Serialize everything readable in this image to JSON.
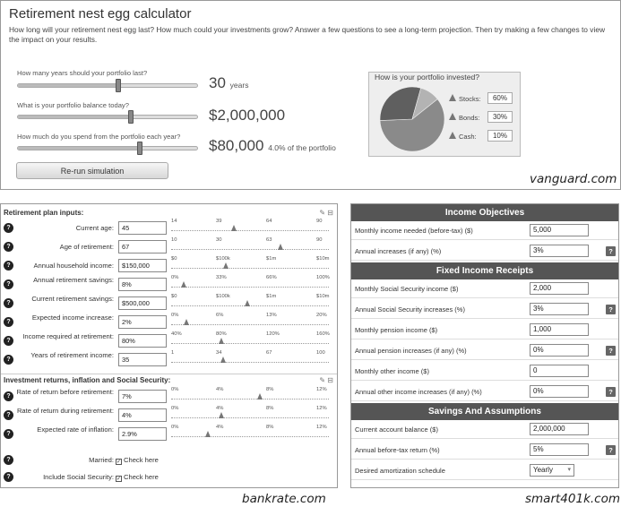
{
  "vanguard": {
    "title": "Retirement nest egg calculator",
    "description": "How long will your retirement nest egg last? How much could your investments grow? Answer a few questions to see a long-term projection. Then try making a few changes to view the impact on your results.",
    "years": {
      "question": "How many years should your portfolio last?",
      "value": "30",
      "unit": "years",
      "slider_fraction": 0.56
    },
    "balance": {
      "question": "What is your portfolio balance today?",
      "value": "$2,000,000",
      "slider_fraction": 0.63
    },
    "spend": {
      "question": "How much do you spend from the portfolio each year?",
      "value": "$80,000",
      "note": "4.0% of the portfolio",
      "slider_fraction": 0.68
    },
    "rerun_label": "Re-run simulation",
    "allocation": {
      "heading": "How is your portfolio invested?",
      "items": [
        {
          "label": "Stocks:",
          "value": "60%",
          "color": "#8a8a8a"
        },
        {
          "label": "Bonds:",
          "value": "30%",
          "color": "#5f5f5f"
        },
        {
          "label": "Cash:",
          "value": "10%",
          "color": "#b3b3b3"
        }
      ],
      "shares": [
        60,
        30,
        10
      ]
    },
    "watermark": "vanguard.com"
  },
  "bankrate": {
    "section1_title": "Retirement plan inputs:",
    "section2_title": "Investment returns, inflation and Social Security:",
    "section_tools": "✎ ⊟",
    "help_glyph": "?",
    "rows": [
      {
        "label": "Current age:",
        "value": "45",
        "ticks": [
          "14",
          "39",
          "64",
          "90"
        ],
        "marker": 0.41
      },
      {
        "label": "Age of retirement:",
        "value": "67",
        "ticks": [
          "10",
          "30",
          "63",
          "90"
        ],
        "marker": 0.72
      },
      {
        "label": "Annual household income:",
        "value": "$150,000",
        "ticks": [
          "$0",
          "$100k",
          "$1m",
          "$10m"
        ],
        "marker": 0.36
      },
      {
        "label": "Annual retirement savings:",
        "value": "8%",
        "ticks": [
          "0%",
          "33%",
          "66%",
          "100%"
        ],
        "marker": 0.08
      },
      {
        "label": "Current retirement savings:",
        "value": "$500,000",
        "ticks": [
          "$0",
          "$100k",
          "$1m",
          "$10m"
        ],
        "marker": 0.5
      },
      {
        "label": "Expected income increase:",
        "value": "2%",
        "ticks": [
          "0%",
          "6%",
          "13%",
          "20%"
        ],
        "marker": 0.1
      },
      {
        "label": "Income required at retirement:",
        "value": "80%",
        "ticks": [
          "40%",
          "80%",
          "120%",
          "160%"
        ],
        "marker": 0.33
      },
      {
        "label": "Years of retirement income:",
        "value": "35",
        "ticks": [
          "1",
          "34",
          "67",
          "100"
        ],
        "marker": 0.34
      }
    ],
    "rows2": [
      {
        "label": "Rate of return before retirement:",
        "value": "7%",
        "ticks": [
          "0%",
          "4%",
          "8%",
          "12%"
        ],
        "marker": 0.58
      },
      {
        "label": "Rate of return during retirement:",
        "value": "4%",
        "ticks": [
          "0%",
          "4%",
          "8%",
          "12%"
        ],
        "marker": 0.33
      },
      {
        "label": "Expected rate of inflation:",
        "value": "2.9%",
        "ticks": [
          "0%",
          "4%",
          "8%",
          "12%"
        ],
        "marker": 0.24
      }
    ],
    "married": {
      "label": "Married:",
      "check": "Check here",
      "checked": true
    },
    "social_security": {
      "label": "Include Social Security:",
      "check": "Check here",
      "checked": true
    },
    "watermark": "bankrate.com"
  },
  "smart401k": {
    "help_glyph": "?",
    "sections": [
      {
        "title": "Income Objectives",
        "rows": [
          {
            "label": "Monthly income needed (before-tax) ($)",
            "value": "5,000",
            "help": false
          },
          {
            "label": "Annual increases (if any) (%)",
            "value": "3%",
            "help": true
          }
        ]
      },
      {
        "title": "Fixed Income Receipts",
        "rows": [
          {
            "label": "Monthly Social Security income ($)",
            "value": "2,000",
            "help": false
          },
          {
            "label": "Annual Social Security increases (%)",
            "value": "3%",
            "help": true
          },
          {
            "label": "Monthly pension income ($)",
            "value": "1,000",
            "help": false
          },
          {
            "label": "Annual pension increases (if any) (%)",
            "value": "0%",
            "help": true
          },
          {
            "label": "Monthly other income ($)",
            "value": "0",
            "help": false
          },
          {
            "label": "Annual other income increases (if any) (%)",
            "value": "0%",
            "help": true
          }
        ]
      },
      {
        "title": "Savings And Assumptions",
        "rows": [
          {
            "label": "Current account balance ($)",
            "value": "2,000,000",
            "help": false
          },
          {
            "label": "Annual before-tax return (%)",
            "value": "5%",
            "help": true
          },
          {
            "label": "Desired amortization schedule",
            "value": "Yearly",
            "select": true,
            "help": false
          }
        ]
      }
    ],
    "watermark": "smart401k.com"
  }
}
